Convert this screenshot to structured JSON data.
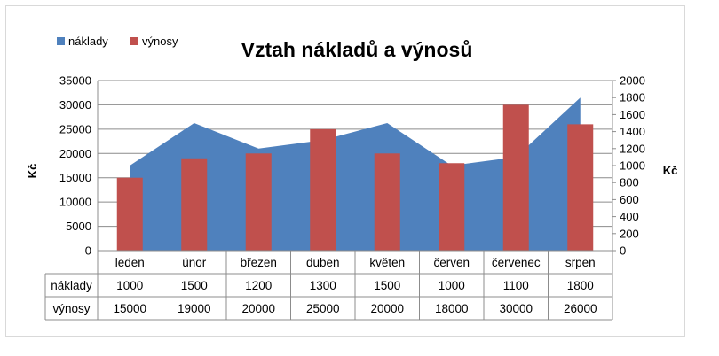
{
  "chart_data": {
    "type": "bar",
    "title": "Vztah nákladů a výnosů",
    "ylabel": "Kč",
    "y2label": "Kč",
    "categories": [
      "leden",
      "únor",
      "březen",
      "duben",
      "květen",
      "červen",
      "červenec",
      "srpen"
    ],
    "series": [
      {
        "name": "náklady",
        "type": "area",
        "axis": "right",
        "color": "#4f81bd",
        "values": [
          1000,
          1500,
          1200,
          1300,
          1500,
          1000,
          1100,
          1800
        ]
      },
      {
        "name": "výnosy",
        "type": "bar",
        "axis": "left",
        "color": "#c0504d",
        "values": [
          15000,
          19000,
          20000,
          25000,
          20000,
          18000,
          30000,
          26000
        ]
      }
    ],
    "ylim": [
      0,
      35000
    ],
    "yticks": [
      0,
      5000,
      10000,
      15000,
      20000,
      25000,
      30000,
      35000
    ],
    "y2lim": [
      0,
      2000
    ],
    "y2ticks": [
      0,
      200,
      400,
      600,
      800,
      1000,
      1200,
      1400,
      1600,
      1800,
      2000
    ],
    "grid": true,
    "legend": "top-left",
    "data_table": true
  }
}
